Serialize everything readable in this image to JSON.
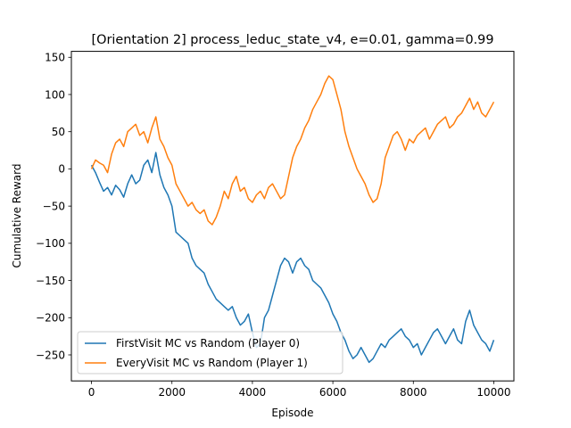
{
  "chart_data": {
    "type": "line",
    "title": "[Orientation 2] process_leduc_state_v4, e=0.01, gamma=0.99",
    "xlabel": "Episode",
    "ylabel": "Cumulative Reward",
    "xlim": [
      -500,
      10500
    ],
    "ylim": [
      -285,
      158
    ],
    "xticks": [
      0,
      2000,
      4000,
      6000,
      8000,
      10000
    ],
    "yticks": [
      -250,
      -200,
      -150,
      -100,
      -50,
      0,
      50,
      100,
      150
    ],
    "legend_position": "lower-left",
    "grid": false,
    "series": [
      {
        "name": "FirstVisit MC vs Random (Player 0)",
        "color": "#1f77b4",
        "x": [
          0,
          100,
          200,
          300,
          400,
          500,
          600,
          700,
          800,
          900,
          1000,
          1100,
          1200,
          1300,
          1400,
          1500,
          1600,
          1700,
          1800,
          1900,
          2000,
          2100,
          2200,
          2300,
          2400,
          2500,
          2600,
          2700,
          2800,
          2900,
          3000,
          3100,
          3200,
          3300,
          3400,
          3500,
          3600,
          3700,
          3800,
          3900,
          4000,
          4100,
          4200,
          4300,
          4400,
          4500,
          4600,
          4700,
          4800,
          4900,
          5000,
          5100,
          5200,
          5300,
          5400,
          5500,
          5600,
          5700,
          5800,
          5900,
          6000,
          6100,
          6200,
          6300,
          6400,
          6500,
          6600,
          6700,
          6800,
          6900,
          7000,
          7100,
          7200,
          7300,
          7400,
          7500,
          7600,
          7700,
          7800,
          7900,
          8000,
          8100,
          8200,
          8300,
          8400,
          8500,
          8600,
          8700,
          8800,
          8900,
          9000,
          9100,
          9200,
          9300,
          9400,
          9500,
          9600,
          9700,
          9800,
          9900,
          10000
        ],
        "y": [
          5,
          -5,
          -18,
          -30,
          -25,
          -35,
          -22,
          -28,
          -38,
          -20,
          -8,
          -20,
          -15,
          5,
          12,
          -5,
          22,
          -8,
          -25,
          -35,
          -50,
          -85,
          -90,
          -95,
          -100,
          -120,
          -130,
          -135,
          -140,
          -155,
          -165,
          -175,
          -180,
          -185,
          -190,
          -185,
          -200,
          -210,
          -205,
          -195,
          -220,
          -240,
          -235,
          -200,
          -190,
          -170,
          -150,
          -130,
          -120,
          -125,
          -140,
          -125,
          -120,
          -130,
          -135,
          -150,
          -155,
          -160,
          -170,
          -180,
          -195,
          -205,
          -220,
          -230,
          -245,
          -255,
          -250,
          -240,
          -250,
          -260,
          -255,
          -245,
          -235,
          -240,
          -230,
          -225,
          -220,
          -215,
          -225,
          -230,
          -240,
          -235,
          -250,
          -240,
          -230,
          -220,
          -215,
          -225,
          -235,
          -225,
          -215,
          -230,
          -235,
          -205,
          -190,
          -210,
          -220,
          -230,
          -235,
          -245,
          -230
        ]
      },
      {
        "name": "EveryVisit MC vs Random (Player 1)",
        "color": "#ff7f0e",
        "x": [
          0,
          100,
          200,
          300,
          400,
          500,
          600,
          700,
          800,
          900,
          1000,
          1100,
          1200,
          1300,
          1400,
          1500,
          1600,
          1700,
          1800,
          1900,
          2000,
          2100,
          2200,
          2300,
          2400,
          2500,
          2600,
          2700,
          2800,
          2900,
          3000,
          3100,
          3200,
          3300,
          3400,
          3500,
          3600,
          3700,
          3800,
          3900,
          4000,
          4100,
          4200,
          4300,
          4400,
          4500,
          4600,
          4700,
          4800,
          4900,
          5000,
          5100,
          5200,
          5300,
          5400,
          5500,
          5600,
          5700,
          5800,
          5900,
          6000,
          6100,
          6200,
          6300,
          6400,
          6500,
          6600,
          6700,
          6800,
          6900,
          7000,
          7100,
          7200,
          7300,
          7400,
          7500,
          7600,
          7700,
          7800,
          7900,
          8000,
          8100,
          8200,
          8300,
          8400,
          8500,
          8600,
          8700,
          8800,
          8900,
          9000,
          9100,
          9200,
          9300,
          9400,
          9500,
          9600,
          9700,
          9800,
          9900,
          10000
        ],
        "y": [
          0,
          12,
          8,
          5,
          -5,
          20,
          35,
          40,
          30,
          50,
          55,
          60,
          45,
          50,
          35,
          55,
          70,
          40,
          30,
          15,
          5,
          -20,
          -30,
          -40,
          -50,
          -45,
          -55,
          -60,
          -55,
          -70,
          -75,
          -65,
          -50,
          -30,
          -40,
          -20,
          -10,
          -30,
          -25,
          -40,
          -45,
          -35,
          -30,
          -40,
          -25,
          -20,
          -30,
          -40,
          -35,
          -10,
          15,
          30,
          40,
          55,
          65,
          80,
          90,
          100,
          115,
          125,
          120,
          100,
          80,
          50,
          30,
          15,
          0,
          -10,
          -20,
          -35,
          -45,
          -40,
          -20,
          15,
          30,
          45,
          50,
          40,
          25,
          40,
          35,
          45,
          50,
          55,
          40,
          50,
          60,
          65,
          70,
          55,
          60,
          70,
          75,
          85,
          95,
          80,
          90,
          75,
          70,
          80,
          90
        ]
      }
    ]
  }
}
